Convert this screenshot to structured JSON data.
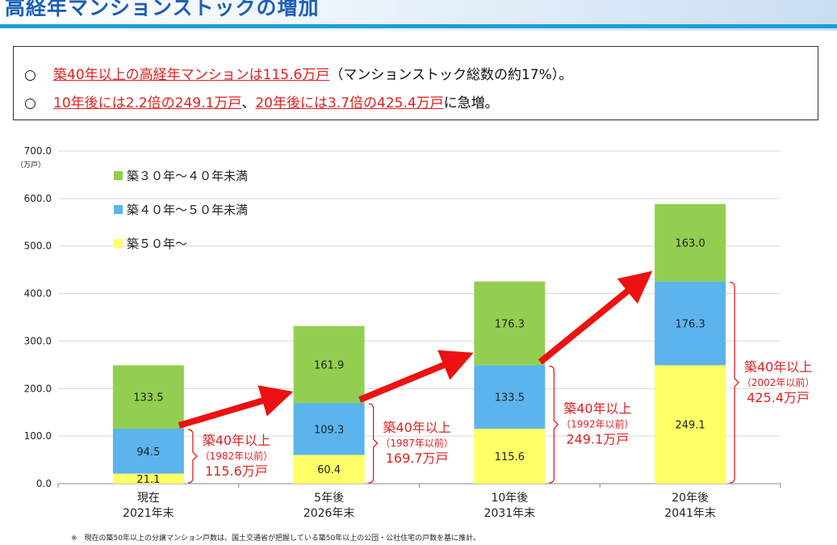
{
  "header": {
    "title": "高経年マンションストックの増加"
  },
  "summary": {
    "bullet": "○",
    "line1": {
      "highlight": "築40年以上の高経年マンションは115.6万戸",
      "rest": "（マンションストック総数の約17%）。"
    },
    "line2": {
      "hl1": "10年後には2.2倍の249.1万戸",
      "sep": "、",
      "hl2": "20年後には3.7倍の425.4万戸",
      "rest": "に急増。"
    }
  },
  "chart_data": {
    "type": "bar",
    "stacked": true,
    "unit": "（万戸）",
    "ylim": [
      0,
      700
    ],
    "yticks": [
      "0.0",
      "100.0",
      "200.0",
      "300.0",
      "400.0",
      "500.0",
      "600.0",
      "700.0"
    ],
    "categories": [
      [
        "現在",
        "2021年末"
      ],
      [
        "5年後",
        "2026年末"
      ],
      [
        "10年後",
        "2031年末"
      ],
      [
        "20年後",
        "2041年末"
      ]
    ],
    "series": [
      {
        "name": "築５０年～",
        "color": "#ffff66",
        "values": [
          21.1,
          60.4,
          115.6,
          249.1
        ],
        "labels": [
          "21.1",
          "60.4",
          "115.6",
          "249.1"
        ]
      },
      {
        "name": "築４０年～５０年未満",
        "color": "#5bb4ed",
        "values": [
          94.5,
          109.3,
          133.5,
          176.3
        ],
        "labels": [
          "94.5",
          "109.3",
          "133.5",
          "176.3"
        ]
      },
      {
        "name": "築３０年～４０年未満",
        "color": "#92cf50",
        "values": [
          133.5,
          161.9,
          176.3,
          163.0
        ],
        "labels": [
          "133.5",
          "161.9",
          "176.3",
          "163.0"
        ]
      }
    ],
    "legend_order": [
      2,
      1,
      0
    ],
    "annotations": [
      {
        "line1": "築40年以上",
        "line2": "（1982年以前）",
        "line3": "115.6万戸"
      },
      {
        "line1": "築40年以上",
        "line2": "（1987年以前）",
        "line3": "169.7万戸"
      },
      {
        "line1": "築40年以上",
        "line2": "（1992年以前）",
        "line3": "249.1万戸"
      },
      {
        "line1": "築40年以上",
        "line2": "（2002年以前）",
        "line3": "425.4万戸"
      }
    ],
    "annotation_color": "#e02020",
    "arrow_color": "#ee1111"
  },
  "footnote": "※　現在の築50年以上の分譲マンション戸数は、国土交通省が把握している築50年以上の公団・公社住宅の戸数を基に推計。"
}
